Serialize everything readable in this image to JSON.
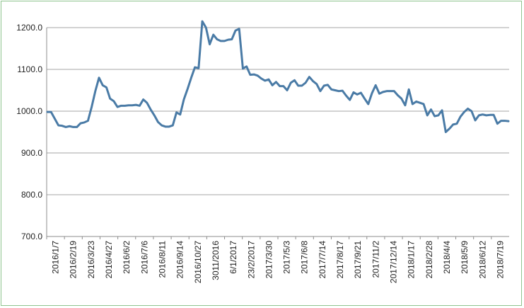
{
  "chart_data": {
    "type": "line",
    "title": "",
    "xlabel": "",
    "ylabel": "",
    "ylim": [
      700,
      1200
    ],
    "y_ticks": [
      "700.0",
      "800.0",
      "900.0",
      "1000.0",
      "1100.0",
      "1200.0"
    ],
    "grid": true,
    "legend": "none",
    "x_tick_labels": [
      "2016/1/7",
      "2016/2/19",
      "2016/3/23",
      "2016/4/27",
      "2016/6/2",
      "2016/7/6",
      "2016/8/11",
      "2016/9/14",
      "2016/10/27",
      "3011/2016",
      "6/1/2017",
      "23/2/2017",
      "2017/3/30",
      "2017/5/3",
      "2017/6/8",
      "2017/7/14",
      "2017/8/17",
      "2017/9/21",
      "2017/11/2",
      "2017/12/14",
      "2018/1/17",
      "2018/2/28",
      "2018/4/4",
      "2018/5/9",
      "2018/6/12",
      "2018/7/19"
    ],
    "series": [
      {
        "color": "#4a7ba6",
        "values": [
          998,
          998,
          982,
          966,
          965,
          962,
          964,
          962,
          962,
          971,
          973,
          977,
          1010,
          1048,
          1080,
          1062,
          1057,
          1030,
          1024,
          1010,
          1013,
          1013,
          1014,
          1014,
          1015,
          1013,
          1028,
          1020,
          1004,
          990,
          974,
          966,
          963,
          963,
          966,
          997,
          992,
          1028,
          1053,
          1080,
          1105,
          1103,
          1215,
          1200,
          1160,
          1183,
          1172,
          1168,
          1168,
          1171,
          1172,
          1193,
          1197,
          1102,
          1107,
          1087,
          1088,
          1085,
          1078,
          1073,
          1076,
          1062,
          1070,
          1060,
          1060,
          1050,
          1068,
          1074,
          1061,
          1061,
          1068,
          1082,
          1072,
          1065,
          1048,
          1061,
          1063,
          1052,
          1050,
          1048,
          1049,
          1037,
          1027,
          1045,
          1040,
          1044,
          1030,
          1017,
          1043,
          1062,
          1042,
          1046,
          1048,
          1048,
          1048,
          1038,
          1030,
          1014,
          1052,
          1017,
          1023,
          1020,
          1017,
          990,
          1004,
          988,
          990,
          1002,
          950,
          958,
          968,
          970,
          987,
          998,
          1006,
          1000,
          978,
          990,
          992,
          990,
          991,
          991,
          970,
          977,
          977,
          976
        ]
      }
    ]
  }
}
